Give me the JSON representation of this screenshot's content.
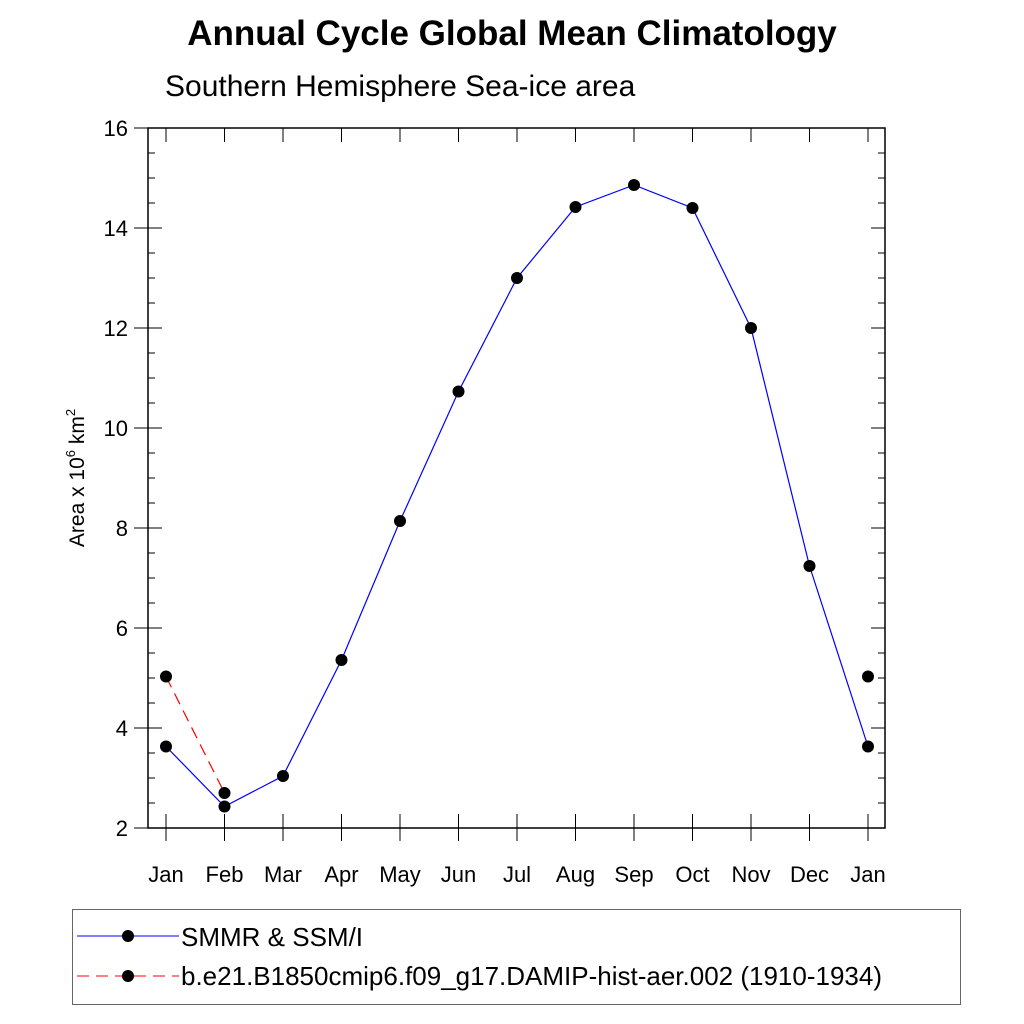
{
  "title": "Annual Cycle Global Mean Climatology",
  "subtitle": "Southern Hemisphere Sea-ice area",
  "chart_data": {
    "type": "line",
    "categories": [
      "Jan",
      "Feb",
      "Mar",
      "Apr",
      "May",
      "Jun",
      "Jul",
      "Aug",
      "Sep",
      "Oct",
      "Nov",
      "Dec",
      "Jan"
    ],
    "ylabel": "Area x 10^6 km^2",
    "ylabel_parts": {
      "main": "Area x 10",
      "exp1": "6",
      "unit": " km",
      "exp2": "2"
    },
    "ylim": [
      2,
      16
    ],
    "yticks": [
      2,
      4,
      6,
      8,
      10,
      12,
      14,
      16
    ],
    "legend_placement": "bottom",
    "series": [
      {
        "name": "SMMR & SSM/I",
        "color": "#0000ff",
        "style": "solid",
        "values": [
          3.63,
          2.43,
          3.04,
          5.36,
          8.14,
          10.73,
          13.0,
          14.42,
          14.86,
          14.4,
          12.0,
          7.24,
          3.63
        ]
      },
      {
        "name": "b.e21.B1850cmip6.f09_g17.DAMIP-hist-aer.002 (1910-1934)",
        "color": "#ff0000",
        "style": "dashed",
        "values": [
          5.03,
          2.7,
          null,
          null,
          null,
          null,
          null,
          null,
          null,
          null,
          null,
          null,
          5.03
        ]
      }
    ]
  }
}
